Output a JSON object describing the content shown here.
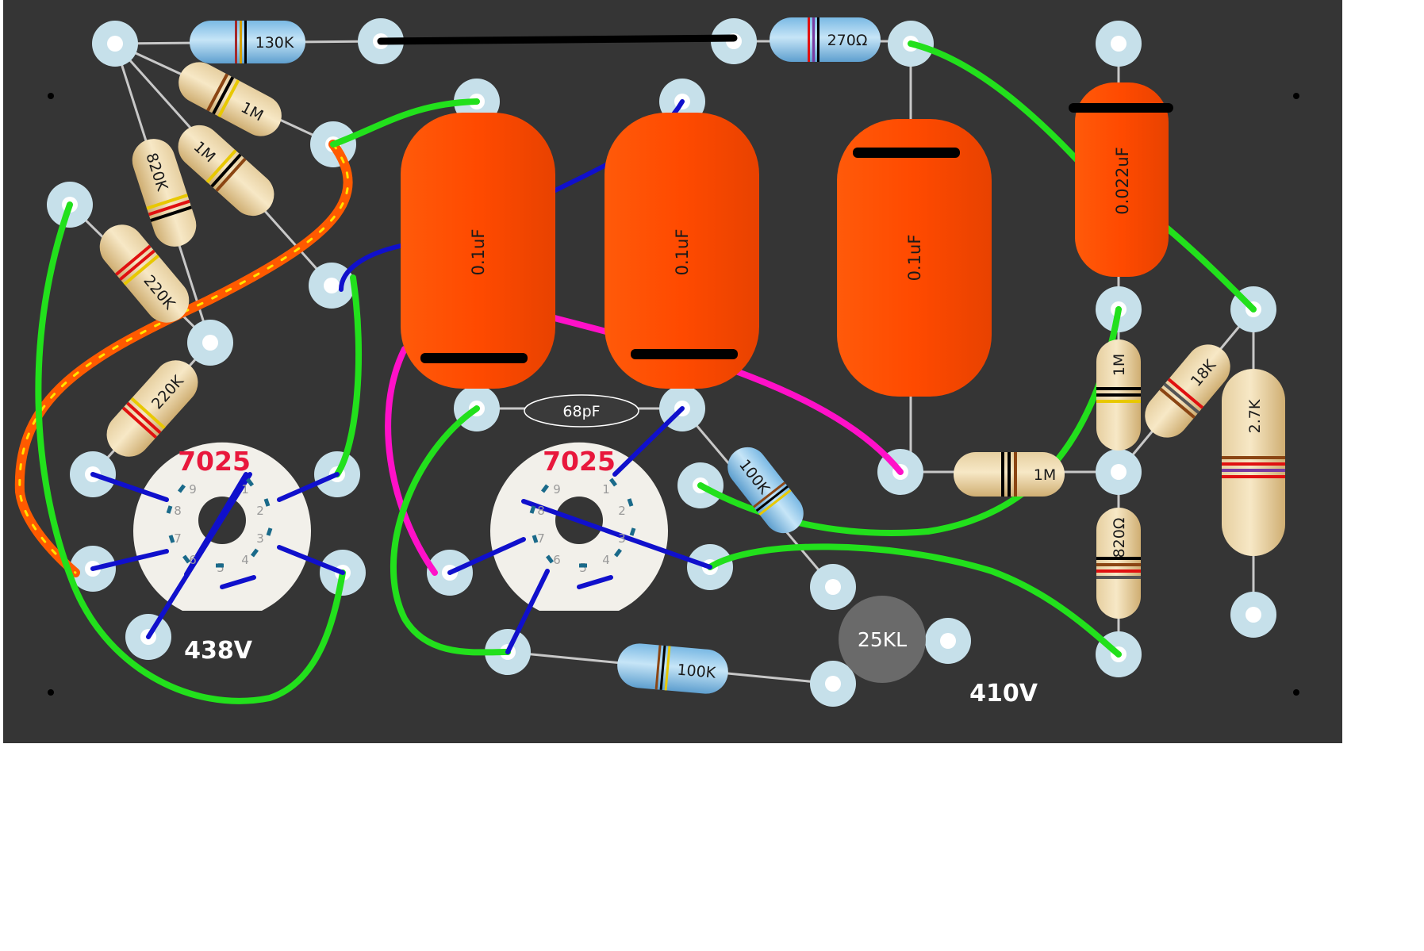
{
  "board": {
    "background": "#353535",
    "voltages": {
      "left": "438V",
      "right": "410V"
    },
    "tubes": [
      {
        "label": "7025",
        "pins": [
          "1",
          "2",
          "3",
          "4",
          "5",
          "6",
          "7",
          "8",
          "9"
        ]
      },
      {
        "label": "7025",
        "pins": [
          "1",
          "2",
          "3",
          "4",
          "5",
          "6",
          "7",
          "8",
          "9"
        ]
      }
    ],
    "resistors": {
      "r130k": "130K",
      "r270": "270Ω",
      "r1m_a": "1M",
      "r1m_b": "1M",
      "r820k": "820K",
      "r220k_a": "220K",
      "r220k_b": "220K",
      "r100k_a": "100K",
      "r100k_b": "100K",
      "r1m_c": "1M",
      "r1m_d": "1M",
      "r18k": "18K",
      "r27k": "2.7K",
      "r820": "820Ω"
    },
    "capacitors": {
      "c1": "0.1uF",
      "c2": "0.1uF",
      "c3": "0.1uF",
      "c4": "0.022uF",
      "c68": "68pF"
    },
    "pot": "25KL"
  },
  "colors": {
    "wire_green": "#22e01c",
    "wire_blue": "#1010cc",
    "wire_magenta": "#ff10c8",
    "wire_black": "#000000",
    "cap_orange": "#ff4d00",
    "resistor_tan": "#e8cf98",
    "resistor_blue": "#8cc8ec"
  }
}
